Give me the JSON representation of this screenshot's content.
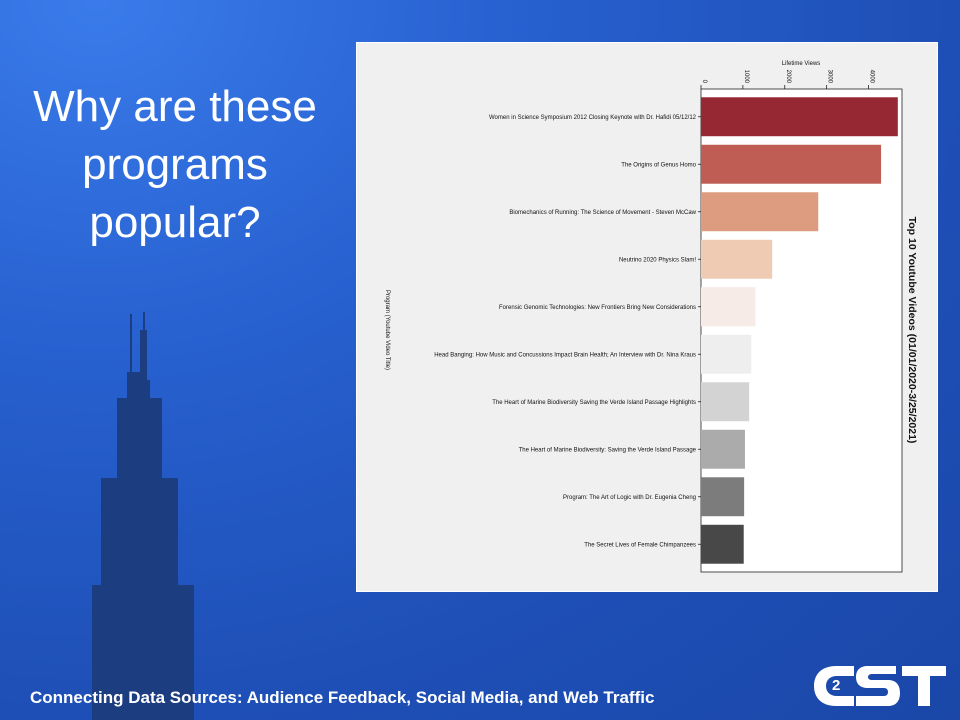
{
  "slide": {
    "title_lines": [
      "Why are these",
      "programs",
      "popular?"
    ],
    "footer": "Connecting Data Sources: Audience Feedback, Social Media, and Web Traffic",
    "logo_text": "C2ST",
    "colors": {
      "background": "#2760cf",
      "silhouette": "#1c3d80",
      "logo": "#ffffff"
    },
    "icons": [
      "tower-silhouette-icon",
      "c2st-logo-icon"
    ]
  },
  "chart_data": {
    "type": "bar",
    "orientation": "horizontal",
    "title": "Top 10 Youtube Videos (01/01/2020-3/25/2021)",
    "xlabel": "Lifetime Views",
    "ylabel": "Program (Youtube Video Title)",
    "xlim": [
      0,
      4800
    ],
    "xticks": [
      0,
      1000,
      2000,
      3000,
      4000
    ],
    "grid": false,
    "categories": [
      "Women in Science Symposium 2012 Closing Keynote with Dr. Hafidi 05/12/12",
      "The Origins of Genus Homo",
      "Biomechanics of Running: The Science of Movement - Steven McCaw",
      "Neutrino 2020 Physics Slam!",
      "Forensic Genomic Technologies: New Frontiers Bring New Considerations",
      "Head Banging: How Music and Concussions Impact Brain Health; An Interview with Dr. Nina  Kraus",
      "The Heart of Marine Biodiversity  Saving the Verde Island Passage Highlights",
      "The Heart of Marine Biodiversity: Saving the Verde Island Passage",
      "Program: The Art of Logic with Dr. Eugenia Cheng",
      "The Secret Lives of Female Chimpanzees"
    ],
    "values": [
      4700,
      4300,
      2800,
      1700,
      1300,
      1200,
      1150,
      1050,
      1030,
      1020
    ],
    "colors": [
      "#962834",
      "#bf5d54",
      "#dd9b80",
      "#f0cbb4",
      "#f6ebe6",
      "#eeeeee",
      "#d3d3d3",
      "#ababab",
      "#7c7c7c",
      "#484848"
    ]
  }
}
